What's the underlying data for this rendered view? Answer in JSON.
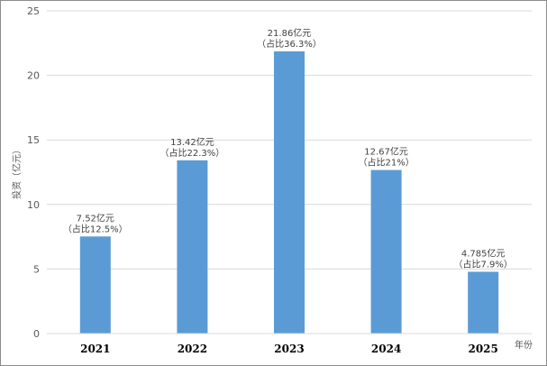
{
  "chart_data": {
    "type": "bar",
    "categories": [
      "2021",
      "2022",
      "2023",
      "2024",
      "2025"
    ],
    "values": [
      7.52,
      13.42,
      21.86,
      12.67,
      4.785
    ],
    "data_labels": [
      {
        "line1": "7.52亿元",
        "line2": "（占比12.5%）"
      },
      {
        "line1": "13.42亿元",
        "line2": "（占比22.3%）"
      },
      {
        "line1": "21.86亿元",
        "line2": "（占比36.3%）"
      },
      {
        "line1": "12.67亿元",
        "line2": "（占比21%）"
      },
      {
        "line1": "4.785亿元",
        "line2": "（占比7.9%）"
      }
    ],
    "title": "",
    "xlabel": "年份",
    "ylabel": "投资（亿元）",
    "ylim": [
      0,
      25
    ],
    "yticks": [
      "0",
      "5",
      "10",
      "15",
      "20",
      "25"
    ],
    "grid": true,
    "legend": "none",
    "bar_color": "#5b9bd5",
    "grid_color": "#d9d9d9"
  }
}
